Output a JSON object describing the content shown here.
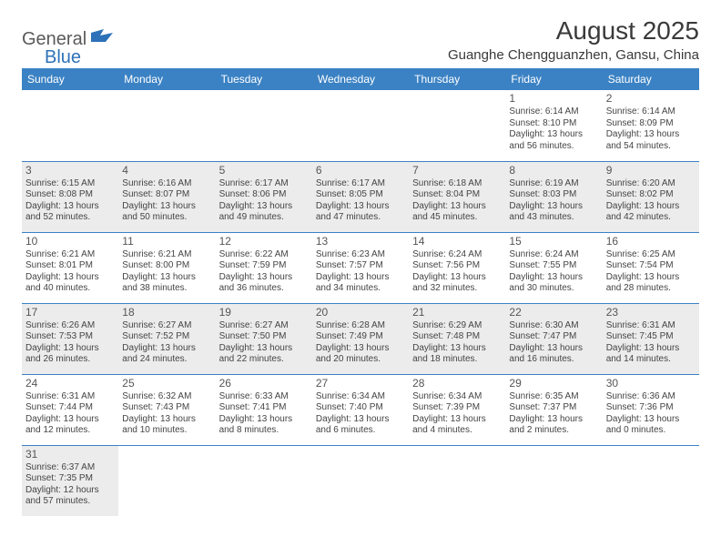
{
  "logo": {
    "text1": "General",
    "text2": "Blue"
  },
  "title": "August 2025",
  "location": "Guanghe Chengguanzhen, Gansu, China",
  "colors": {
    "header_bg": "#3b82c4",
    "header_fg": "#ffffff",
    "shade_bg": "#ececec",
    "border": "#3b82c4",
    "text": "#444444",
    "logo_gray": "#5a5a5a",
    "logo_blue": "#2d71b8"
  },
  "day_headers": [
    "Sunday",
    "Monday",
    "Tuesday",
    "Wednesday",
    "Thursday",
    "Friday",
    "Saturday"
  ],
  "weeks": [
    [
      {
        "blank": true
      },
      {
        "blank": true
      },
      {
        "blank": true
      },
      {
        "blank": true
      },
      {
        "blank": true
      },
      {
        "n": "1",
        "sr": "Sunrise: 6:14 AM",
        "ss": "Sunset: 8:10 PM",
        "dl": "Daylight: 13 hours and 56 minutes."
      },
      {
        "n": "2",
        "sr": "Sunrise: 6:14 AM",
        "ss": "Sunset: 8:09 PM",
        "dl": "Daylight: 13 hours and 54 minutes."
      }
    ],
    [
      {
        "n": "3",
        "sr": "Sunrise: 6:15 AM",
        "ss": "Sunset: 8:08 PM",
        "dl": "Daylight: 13 hours and 52 minutes."
      },
      {
        "n": "4",
        "sr": "Sunrise: 6:16 AM",
        "ss": "Sunset: 8:07 PM",
        "dl": "Daylight: 13 hours and 50 minutes."
      },
      {
        "n": "5",
        "sr": "Sunrise: 6:17 AM",
        "ss": "Sunset: 8:06 PM",
        "dl": "Daylight: 13 hours and 49 minutes."
      },
      {
        "n": "6",
        "sr": "Sunrise: 6:17 AM",
        "ss": "Sunset: 8:05 PM",
        "dl": "Daylight: 13 hours and 47 minutes."
      },
      {
        "n": "7",
        "sr": "Sunrise: 6:18 AM",
        "ss": "Sunset: 8:04 PM",
        "dl": "Daylight: 13 hours and 45 minutes."
      },
      {
        "n": "8",
        "sr": "Sunrise: 6:19 AM",
        "ss": "Sunset: 8:03 PM",
        "dl": "Daylight: 13 hours and 43 minutes."
      },
      {
        "n": "9",
        "sr": "Sunrise: 6:20 AM",
        "ss": "Sunset: 8:02 PM",
        "dl": "Daylight: 13 hours and 42 minutes."
      }
    ],
    [
      {
        "n": "10",
        "sr": "Sunrise: 6:21 AM",
        "ss": "Sunset: 8:01 PM",
        "dl": "Daylight: 13 hours and 40 minutes."
      },
      {
        "n": "11",
        "sr": "Sunrise: 6:21 AM",
        "ss": "Sunset: 8:00 PM",
        "dl": "Daylight: 13 hours and 38 minutes."
      },
      {
        "n": "12",
        "sr": "Sunrise: 6:22 AM",
        "ss": "Sunset: 7:59 PM",
        "dl": "Daylight: 13 hours and 36 minutes."
      },
      {
        "n": "13",
        "sr": "Sunrise: 6:23 AM",
        "ss": "Sunset: 7:57 PM",
        "dl": "Daylight: 13 hours and 34 minutes."
      },
      {
        "n": "14",
        "sr": "Sunrise: 6:24 AM",
        "ss": "Sunset: 7:56 PM",
        "dl": "Daylight: 13 hours and 32 minutes."
      },
      {
        "n": "15",
        "sr": "Sunrise: 6:24 AM",
        "ss": "Sunset: 7:55 PM",
        "dl": "Daylight: 13 hours and 30 minutes."
      },
      {
        "n": "16",
        "sr": "Sunrise: 6:25 AM",
        "ss": "Sunset: 7:54 PM",
        "dl": "Daylight: 13 hours and 28 minutes."
      }
    ],
    [
      {
        "n": "17",
        "sr": "Sunrise: 6:26 AM",
        "ss": "Sunset: 7:53 PM",
        "dl": "Daylight: 13 hours and 26 minutes."
      },
      {
        "n": "18",
        "sr": "Sunrise: 6:27 AM",
        "ss": "Sunset: 7:52 PM",
        "dl": "Daylight: 13 hours and 24 minutes."
      },
      {
        "n": "19",
        "sr": "Sunrise: 6:27 AM",
        "ss": "Sunset: 7:50 PM",
        "dl": "Daylight: 13 hours and 22 minutes."
      },
      {
        "n": "20",
        "sr": "Sunrise: 6:28 AM",
        "ss": "Sunset: 7:49 PM",
        "dl": "Daylight: 13 hours and 20 minutes."
      },
      {
        "n": "21",
        "sr": "Sunrise: 6:29 AM",
        "ss": "Sunset: 7:48 PM",
        "dl": "Daylight: 13 hours and 18 minutes."
      },
      {
        "n": "22",
        "sr": "Sunrise: 6:30 AM",
        "ss": "Sunset: 7:47 PM",
        "dl": "Daylight: 13 hours and 16 minutes."
      },
      {
        "n": "23",
        "sr": "Sunrise: 6:31 AM",
        "ss": "Sunset: 7:45 PM",
        "dl": "Daylight: 13 hours and 14 minutes."
      }
    ],
    [
      {
        "n": "24",
        "sr": "Sunrise: 6:31 AM",
        "ss": "Sunset: 7:44 PM",
        "dl": "Daylight: 13 hours and 12 minutes."
      },
      {
        "n": "25",
        "sr": "Sunrise: 6:32 AM",
        "ss": "Sunset: 7:43 PM",
        "dl": "Daylight: 13 hours and 10 minutes."
      },
      {
        "n": "26",
        "sr": "Sunrise: 6:33 AM",
        "ss": "Sunset: 7:41 PM",
        "dl": "Daylight: 13 hours and 8 minutes."
      },
      {
        "n": "27",
        "sr": "Sunrise: 6:34 AM",
        "ss": "Sunset: 7:40 PM",
        "dl": "Daylight: 13 hours and 6 minutes."
      },
      {
        "n": "28",
        "sr": "Sunrise: 6:34 AM",
        "ss": "Sunset: 7:39 PM",
        "dl": "Daylight: 13 hours and 4 minutes."
      },
      {
        "n": "29",
        "sr": "Sunrise: 6:35 AM",
        "ss": "Sunset: 7:37 PM",
        "dl": "Daylight: 13 hours and 2 minutes."
      },
      {
        "n": "30",
        "sr": "Sunrise: 6:36 AM",
        "ss": "Sunset: 7:36 PM",
        "dl": "Daylight: 13 hours and 0 minutes."
      }
    ],
    [
      {
        "n": "31",
        "sr": "Sunrise: 6:37 AM",
        "ss": "Sunset: 7:35 PM",
        "dl": "Daylight: 12 hours and 57 minutes."
      },
      {
        "blank": true
      },
      {
        "blank": true
      },
      {
        "blank": true
      },
      {
        "blank": true
      },
      {
        "blank": true
      },
      {
        "blank": true
      }
    ]
  ]
}
